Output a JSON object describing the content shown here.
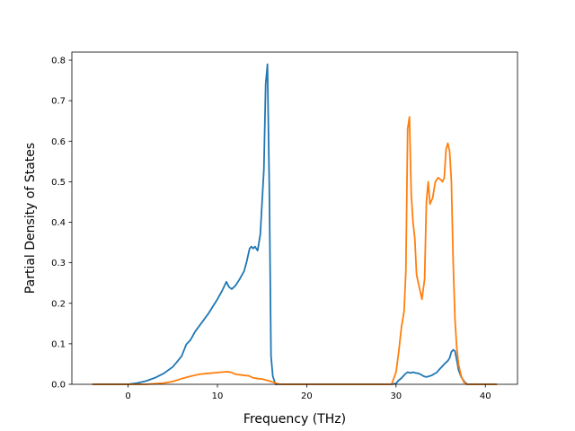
{
  "chart_data": {
    "type": "line",
    "title": "",
    "xlabel": "Frequency (THz)",
    "ylabel": "Partial Density of States",
    "xlim": [
      -6.3,
      43.6
    ],
    "ylim": [
      0,
      0.82
    ],
    "xticks": [
      0,
      10,
      20,
      30,
      40
    ],
    "yticks": [
      0.0,
      0.1,
      0.2,
      0.3,
      0.4,
      0.5,
      0.6,
      0.7,
      0.8
    ],
    "xtick_labels": [
      "0",
      "10",
      "20",
      "30",
      "40"
    ],
    "ytick_labels": [
      "0.0",
      "0.1",
      "0.2",
      "0.3",
      "0.4",
      "0.5",
      "0.6",
      "0.7",
      "0.8"
    ],
    "grid": false,
    "legend": "none",
    "series": [
      {
        "color": "#1f77b4",
        "x": [
          -4,
          0,
          1,
          2,
          3,
          4,
          5,
          5.5,
          6,
          6.5,
          7,
          7.5,
          8,
          9,
          10,
          10.5,
          11,
          11.3,
          11.6,
          12,
          12.5,
          13,
          13.3,
          13.6,
          13.8,
          14,
          14.2,
          14.5,
          14.8,
          15,
          15.2,
          15.4,
          15.6,
          15.8,
          16,
          16.2,
          16.5,
          17,
          20,
          25,
          29.5,
          30,
          30.3,
          30.6,
          31,
          31.3,
          31.6,
          31.9,
          32.2,
          32.5,
          32.8,
          33.1,
          33.4,
          33.7,
          34,
          34.3,
          34.6,
          34.9,
          35.2,
          35.5,
          35.8,
          36,
          36.2,
          36.4,
          36.6,
          36.8,
          37,
          37.3,
          37.7,
          38,
          41.3
        ],
        "y": [
          0,
          0,
          0.003,
          0.008,
          0.016,
          0.027,
          0.043,
          0.056,
          0.07,
          0.098,
          0.11,
          0.13,
          0.145,
          0.175,
          0.21,
          0.23,
          0.253,
          0.24,
          0.235,
          0.243,
          0.26,
          0.28,
          0.305,
          0.335,
          0.34,
          0.335,
          0.34,
          0.33,
          0.37,
          0.45,
          0.53,
          0.74,
          0.79,
          0.5,
          0.07,
          0.02,
          0,
          0,
          0,
          0,
          0,
          0.002,
          0.01,
          0.015,
          0.025,
          0.03,
          0.028,
          0.03,
          0.028,
          0.027,
          0.024,
          0.02,
          0.018,
          0.02,
          0.022,
          0.026,
          0.03,
          0.038,
          0.045,
          0.052,
          0.058,
          0.065,
          0.08,
          0.085,
          0.082,
          0.06,
          0.035,
          0.018,
          0.005,
          0,
          0
        ]
      },
      {
        "color": "#ff7f0e",
        "x": [
          -4,
          0,
          2,
          4,
          5,
          6,
          6.5,
          7,
          8,
          9,
          10,
          11,
          11.5,
          12,
          13,
          13.5,
          14,
          14.5,
          15,
          15.5,
          16,
          16.5,
          17,
          20,
          25,
          29.5,
          30,
          30.3,
          30.6,
          30.9,
          31.1,
          31.3,
          31.5,
          31.7,
          31.9,
          32.1,
          32.3,
          32.6,
          32.9,
          33.2,
          33.4,
          33.6,
          33.8,
          34.1,
          34.4,
          34.7,
          35,
          35.2,
          35.4,
          35.6,
          35.8,
          36,
          36.2,
          36.4,
          36.6,
          36.8,
          37,
          37.3,
          37.6,
          37.9,
          38.2,
          41.3
        ],
        "y": [
          0,
          0,
          0,
          0.003,
          0.007,
          0.014,
          0.017,
          0.02,
          0.025,
          0.027,
          0.029,
          0.031,
          0.03,
          0.025,
          0.022,
          0.021,
          0.016,
          0.014,
          0.013,
          0.01,
          0.007,
          0.003,
          0,
          0,
          0,
          0,
          0.03,
          0.08,
          0.14,
          0.18,
          0.28,
          0.63,
          0.66,
          0.47,
          0.4,
          0.36,
          0.27,
          0.24,
          0.21,
          0.26,
          0.45,
          0.5,
          0.445,
          0.46,
          0.5,
          0.51,
          0.505,
          0.5,
          0.51,
          0.58,
          0.595,
          0.575,
          0.5,
          0.3,
          0.16,
          0.09,
          0.05,
          0.02,
          0.005,
          0,
          0,
          0
        ]
      }
    ]
  }
}
